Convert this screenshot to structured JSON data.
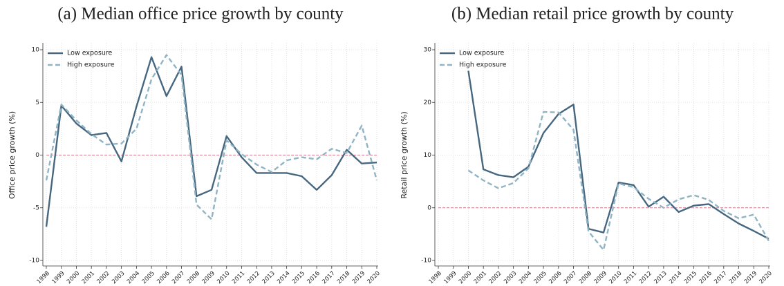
{
  "chart_data": [
    {
      "type": "line",
      "title": "(a) Median office price growth by county",
      "y_label": "Office price growth (%)",
      "categories": [
        "1998",
        "1999",
        "2000",
        "2001",
        "2002",
        "2003",
        "2004",
        "2005",
        "2006",
        "2007",
        "2008",
        "2009",
        "2010",
        "2011",
        "2012",
        "2013",
        "2014",
        "2015",
        "2016",
        "2017",
        "2018",
        "2019",
        "2020"
      ],
      "series": [
        {
          "name": "Low exposure",
          "color": "#46677f",
          "dash": false,
          "values": [
            -6.8,
            4.7,
            3.0,
            1.9,
            2.1,
            -0.6,
            4.6,
            9.3,
            5.6,
            8.4,
            -3.9,
            -3.3,
            1.8,
            -0.2,
            -1.7,
            -1.7,
            -1.7,
            -2.0,
            -3.3,
            -1.9,
            0.5,
            -0.8,
            -0.7
          ]
        },
        {
          "name": "High exposure",
          "color": "#90b4c4",
          "dash": true,
          "values": [
            -2.4,
            4.8,
            3.3,
            2.0,
            1.0,
            1.1,
            2.5,
            7.2,
            9.5,
            7.6,
            -4.7,
            -6.1,
            1.4,
            0.1,
            -0.9,
            -1.6,
            -0.5,
            -0.2,
            -0.4,
            0.6,
            0.2,
            2.8,
            -2.4
          ]
        }
      ],
      "ylim": [
        -10,
        10
      ],
      "yticks": [
        -10,
        -5,
        0,
        5,
        10
      ],
      "grid": true,
      "reference_line": 0,
      "reference_color": "#d87a8c",
      "legend": "upper left"
    },
    {
      "type": "line",
      "title": "(b) Median retail price growth by county",
      "y_label": "Retail price growth (%)",
      "categories": [
        "1998",
        "1999",
        "2000",
        "2001",
        "2002",
        "2003",
        "2004",
        "2005",
        "2006",
        "2007",
        "2008",
        "2009",
        "2010",
        "2011",
        "2012",
        "2013",
        "2014",
        "2015",
        "2016",
        "2017",
        "2018",
        "2019",
        "2020"
      ],
      "series": [
        {
          "name": "Low exposure",
          "color": "#46677f",
          "dash": false,
          "values": [
            null,
            null,
            26,
            7.3,
            6.2,
            5.8,
            7.8,
            14.2,
            17.8,
            19.6,
            -4.0,
            -4.7,
            4.8,
            4.3,
            0.2,
            2.1,
            -0.8,
            0.4,
            0.7,
            -1.2,
            -3.0,
            -4.4,
            -5.9
          ]
        },
        {
          "name": "High exposure",
          "color": "#90b4c4",
          "dash": true,
          "values": [
            null,
            null,
            7.1,
            5.2,
            3.7,
            4.7,
            7.5,
            18.2,
            18.1,
            14.8,
            -4.5,
            -8.0,
            4.6,
            3.9,
            1.7,
            0.0,
            1.6,
            2.4,
            1.5,
            -0.6,
            -2.0,
            -1.3,
            -6.3
          ]
        }
      ],
      "ylim": [
        -10,
        30
      ],
      "yticks": [
        -10,
        0,
        10,
        20,
        30
      ],
      "grid": true,
      "reference_line": 0,
      "reference_color": "#d87a8c",
      "legend": "upper left"
    }
  ]
}
